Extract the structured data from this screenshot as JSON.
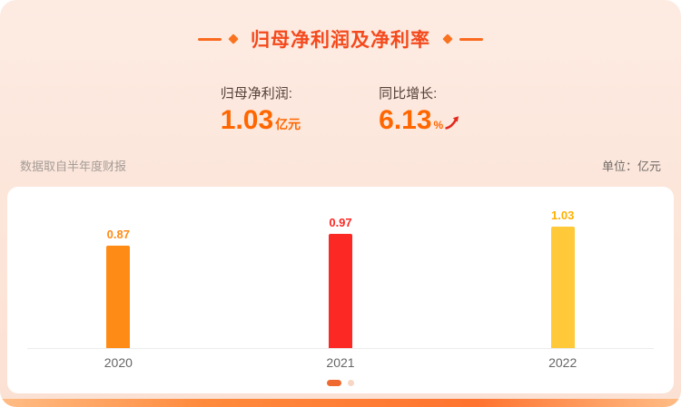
{
  "card": {
    "title": "归母净利润及净利率",
    "stats": [
      {
        "label": "归母净利润:",
        "value": "1.03",
        "unit": "亿元"
      },
      {
        "label": "同比增长:",
        "value": "6.13",
        "unit": "%"
      }
    ],
    "source_note": "数据取自半年度财报",
    "unit_note": "单位：亿元"
  },
  "icons": {
    "trend_up_arrow": "↗"
  },
  "colors": {
    "title": "#f4491c",
    "accent_orange": "#ff6600",
    "arrow_red": "#e2271c",
    "card_background": "#fce5d9"
  },
  "chart_data": {
    "type": "bar",
    "title": "归母净利润及净利率",
    "categories": [
      "2020",
      "2021",
      "2022"
    ],
    "values": [
      0.87,
      0.97,
      1.03
    ],
    "value_labels": [
      "0.87",
      "0.97",
      "1.03"
    ],
    "colors": [
      "#ff8b17",
      "#fb2824",
      "#ffc93a"
    ],
    "label_colors": [
      "#ff8b17",
      "#fb2824",
      "#ffb000"
    ],
    "xlabel": "",
    "ylabel": "亿元",
    "unit": "亿元",
    "ylim": [
      0,
      1.1
    ],
    "grid": false,
    "legend": null
  },
  "pagination": {
    "count": 2,
    "active_index": 0
  }
}
